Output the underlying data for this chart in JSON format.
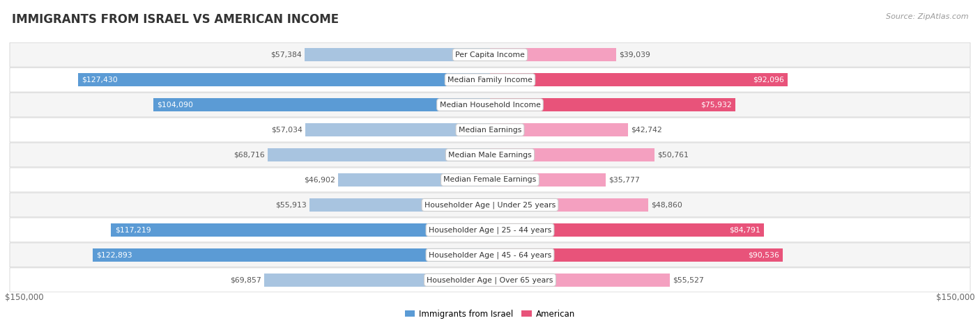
{
  "title": "IMMIGRANTS FROM ISRAEL VS AMERICAN INCOME",
  "source": "Source: ZipAtlas.com",
  "categories": [
    "Per Capita Income",
    "Median Family Income",
    "Median Household Income",
    "Median Earnings",
    "Median Male Earnings",
    "Median Female Earnings",
    "Householder Age | Under 25 years",
    "Householder Age | 25 - 44 years",
    "Householder Age | 45 - 64 years",
    "Householder Age | Over 65 years"
  ],
  "israel_values": [
    57384,
    127430,
    104090,
    57034,
    68716,
    46902,
    55913,
    117219,
    122893,
    69857
  ],
  "american_values": [
    39039,
    92096,
    75932,
    42742,
    50761,
    35777,
    48860,
    84791,
    90536,
    55527
  ],
  "max_value": 150000,
  "israel_color_light": "#a8c4e0",
  "israel_color_dark": "#5b9bd5",
  "american_color_light": "#f4a0c0",
  "american_color_dark": "#e8537a",
  "bar_height": 0.52,
  "row_bg_light": "#f5f5f5",
  "row_bg_dark": "#e8e8e8",
  "label_fontsize": 7.8,
  "value_fontsize": 7.8,
  "title_fontsize": 12,
  "source_fontsize": 8,
  "legend_fontsize": 8.5,
  "xlabel_fontsize": 8.5,
  "fig_bg": "#ffffff",
  "israel_dark_threshold": 100000,
  "american_dark_threshold": 75000
}
